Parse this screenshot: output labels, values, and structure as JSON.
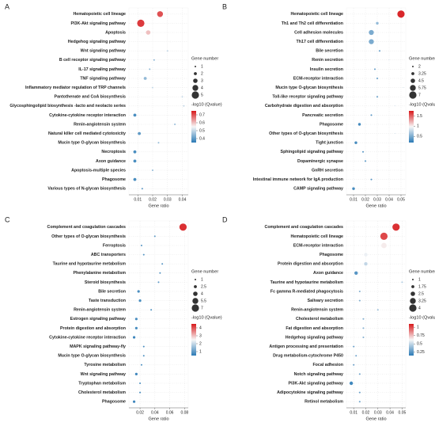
{
  "chart_data": [
    {
      "type": "scatter",
      "panel": "A",
      "xlabel": "Gene ratio",
      "size_legend_title": "Gene number",
      "color_legend_title": "-log10 (Qvalue)",
      "categories": [
        "Hematopoietic cell lineage",
        "PI3K-Akt signaling pathway",
        "Apoptosis",
        "Hedgehog signaling pathway",
        "Wnt signaling pathway",
        "B cell receptor signaling pathway",
        "IL-17 signaling pathway",
        "TNF signaling pathway",
        "Inflammatory mediator regulation of TRP channels",
        "Pantothenate and CoA biosynthesis",
        "Glycosphingolipid biosynthesis -lacto and neolacto series",
        "Cytokine-cytokine receptor interaction",
        "Renin-angiotensin system",
        "Natural killer cell mediated cytotoxicity",
        "Mucin type O-glycan biosynthesis",
        "Necroptosis",
        "Axon guidance",
        "Apoptosis-multiple species",
        "Phagosome",
        "Various types of N-glycan biosynthesis"
      ],
      "x": [
        0.025,
        0.012,
        0.017,
        0.032,
        0.03,
        0.021,
        0.018,
        0.015,
        0.02,
        0.04,
        0.041,
        0.008,
        0.035,
        0.011,
        0.024,
        0.008,
        0.008,
        0.02,
        0.008,
        0.013
      ],
      "sizes": [
        4,
        5,
        3,
        1,
        1,
        1,
        1,
        2,
        1,
        1,
        1,
        2,
        1,
        2,
        1,
        2,
        2,
        1,
        2,
        1
      ],
      "qvalues": [
        0.7,
        0.72,
        0.6,
        0.55,
        0.5,
        0.45,
        0.45,
        0.45,
        0.5,
        0.5,
        0.5,
        0.38,
        0.45,
        0.4,
        0.45,
        0.38,
        0.38,
        0.45,
        0.38,
        0.4
      ],
      "xlim": [
        0.004,
        0.044
      ],
      "xticks": [
        0.01,
        0.02,
        0.03,
        0.04
      ],
      "size_legend": [
        1,
        2,
        3,
        4,
        5
      ],
      "clim": [
        0.35,
        0.75
      ],
      "cticks": [
        0.7,
        0.6,
        0.5,
        0.4
      ],
      "colors": [
        "#2c7bb6",
        "#f7f7f7",
        "#d7191c"
      ],
      "grid": true
    },
    {
      "type": "scatter",
      "panel": "B",
      "xlabel": "Gene ratio",
      "size_legend_title": "Gene number",
      "color_legend_title": "-log10 (Qvalue)",
      "categories": [
        "Hematopoietic cell lineage",
        "Th1 and Th2 cell differentiation",
        "Cell adhesion molecules",
        "Th17 cell differentiation",
        "Bile secretion",
        "Renin secretion",
        "Insulin secretion",
        "ECM-receptor interaction",
        "Mucin type O-glycan biosynthesis",
        "Toll-like receptor signaling pathway",
        "Carbohydrate digestion and absorption",
        "Pancreatic secretion",
        "Phagosome",
        "Other types of O-glycan biosynthesis",
        "Tight junction",
        "Sphingolipid signaling pathway",
        "Dopaminergic synapse",
        "GnRH secretion",
        "Intestinal immune network for IgA production",
        "CAMP signaling pathway"
      ],
      "x": [
        0.05,
        0.03,
        0.025,
        0.025,
        0.032,
        0.04,
        0.028,
        0.03,
        0.052,
        0.03,
        0.045,
        0.025,
        0.015,
        0.045,
        0.012,
        0.018,
        0.02,
        0.03,
        0.025,
        0.01
      ],
      "sizes": [
        7,
        3,
        5,
        5,
        2,
        1,
        2,
        2,
        1,
        2,
        1,
        2,
        3,
        1,
        3,
        2,
        2,
        1,
        2,
        3
      ],
      "qvalues": [
        1.7,
        0.6,
        0.5,
        0.5,
        0.4,
        0.4,
        0.4,
        0.4,
        0.4,
        0.4,
        0.4,
        0.35,
        0.3,
        0.35,
        0.3,
        0.35,
        0.35,
        0.35,
        0.35,
        0.3
      ],
      "xlim": [
        0.004,
        0.054
      ],
      "xticks": [
        0.01,
        0.02,
        0.03,
        0.04,
        0.05
      ],
      "size_legend": [
        2,
        3.25,
        4.5,
        5.75,
        7
      ],
      "clim": [
        0.2,
        1.75
      ],
      "cticks": [
        1.5,
        1,
        0.5
      ],
      "colors": [
        "#2c7bb6",
        "#f7f7f7",
        "#d7191c"
      ],
      "grid": true
    },
    {
      "type": "scatter",
      "panel": "C",
      "xlabel": "Gene ratio",
      "size_legend_title": "Gene number",
      "color_legend_title": "-log10 (Qvalue)",
      "categories": [
        "Complement and coagulation cascades",
        "Other types of O-glycan biosynthesis",
        "Ferroptosis",
        "ABC transporters",
        "Taurine and hypotaurine metabolism",
        "Phenylalanine metabolism",
        "Steroid biosynthesis",
        "Bile secretion",
        "Taste transduction",
        "Renin-angiotensin system",
        "Estrogen signaling pathway",
        "Protein digestion and absorption",
        "Cytokine-cytokine receptor interaction",
        "MAPK signaling pathway-fly",
        "Mucin type O-glycan biosynthesis",
        "Tyrosine metabolism",
        "Wnt signaling pathway",
        "Tryptophan metabolism",
        "Cholesterol metabolism",
        "Phagosome"
      ],
      "x": [
        0.078,
        0.04,
        0.022,
        0.025,
        0.05,
        0.047,
        0.045,
        0.018,
        0.02,
        0.035,
        0.015,
        0.015,
        0.012,
        0.025,
        0.025,
        0.022,
        0.015,
        0.02,
        0.02,
        0.012
      ],
      "sizes": [
        7,
        1,
        1,
        1,
        1,
        1,
        1,
        2,
        2,
        1,
        2,
        2,
        2,
        1,
        1,
        1,
        2,
        1,
        1,
        2
      ],
      "qvalues": [
        4.3,
        1,
        0.9,
        0.9,
        0.9,
        0.9,
        0.9,
        0.8,
        0.8,
        0.8,
        0.8,
        0.8,
        0.7,
        0.8,
        0.8,
        0.8,
        0.7,
        0.8,
        0.8,
        0.7
      ],
      "xlim": [
        0.005,
        0.085
      ],
      "xticks": [
        0.02,
        0.04,
        0.06,
        0.08
      ],
      "size_legend": [
        1,
        2.5,
        4,
        5.5,
        7
      ],
      "clim": [
        0.5,
        4.5
      ],
      "cticks": [
        4,
        3,
        2,
        1
      ],
      "colors": [
        "#2c7bb6",
        "#f7f7f7",
        "#d7191c"
      ],
      "grid": true
    },
    {
      "type": "scatter",
      "panel": "D",
      "xlabel": "Gene ratio",
      "size_legend_title": "Gene number",
      "color_legend_title": "-log10 (Qvalue)",
      "categories": [
        "Complement and coagulation cascades",
        "Hematopoietic cell lineage",
        "ECM-receptor interaction",
        "Phagosome",
        "Protein digestion and absorption",
        "Axon guidance",
        "Taurine and hypotaurine metabolism",
        "Fc gamma R-mediated phagocytosis",
        "Salivary secretion",
        "Renin-angiotensin system",
        "Cholesterol metabolism",
        "Fat digestion and absorption",
        "Hedgehog signaling pathway",
        "Antigen processing and presentation",
        "Drug metabolism-cytochrome P450",
        "Focal adhesion",
        "Notch signaling pathway",
        "PI3K-Akt signaling pathway",
        "Adipocytokine signaling pathway",
        "Retinol metabolism"
      ],
      "x": [
        0.045,
        0.035,
        0.035,
        0.02,
        0.02,
        0.012,
        0.05,
        0.015,
        0.015,
        0.03,
        0.018,
        0.018,
        0.018,
        0.01,
        0.012,
        0.01,
        0.015,
        0.008,
        0.015,
        0.015
      ],
      "sizes": [
        4,
        4,
        3,
        2,
        2,
        2,
        1,
        1,
        1,
        1,
        1,
        1,
        1,
        1,
        1,
        1,
        1,
        2,
        1,
        1
      ],
      "qvalues": [
        1.05,
        1,
        0.65,
        0.6,
        0.5,
        0.25,
        0.45,
        0.35,
        0.35,
        0.4,
        0.35,
        0.35,
        0.35,
        0.3,
        0.3,
        0.3,
        0.3,
        0.2,
        0.3,
        0.3
      ],
      "xlim": [
        0.004,
        0.053
      ],
      "xticks": [
        0.01,
        0.02,
        0.03,
        0.04,
        0.05
      ],
      "size_legend": [
        1,
        1.75,
        2.5,
        3.25,
        4
      ],
      "clim": [
        0.15,
        1.1
      ],
      "cticks": [
        1,
        0.75,
        0.5,
        0.25
      ],
      "colors": [
        "#2c7bb6",
        "#f7f7f7",
        "#d7191c"
      ],
      "grid": true
    }
  ]
}
